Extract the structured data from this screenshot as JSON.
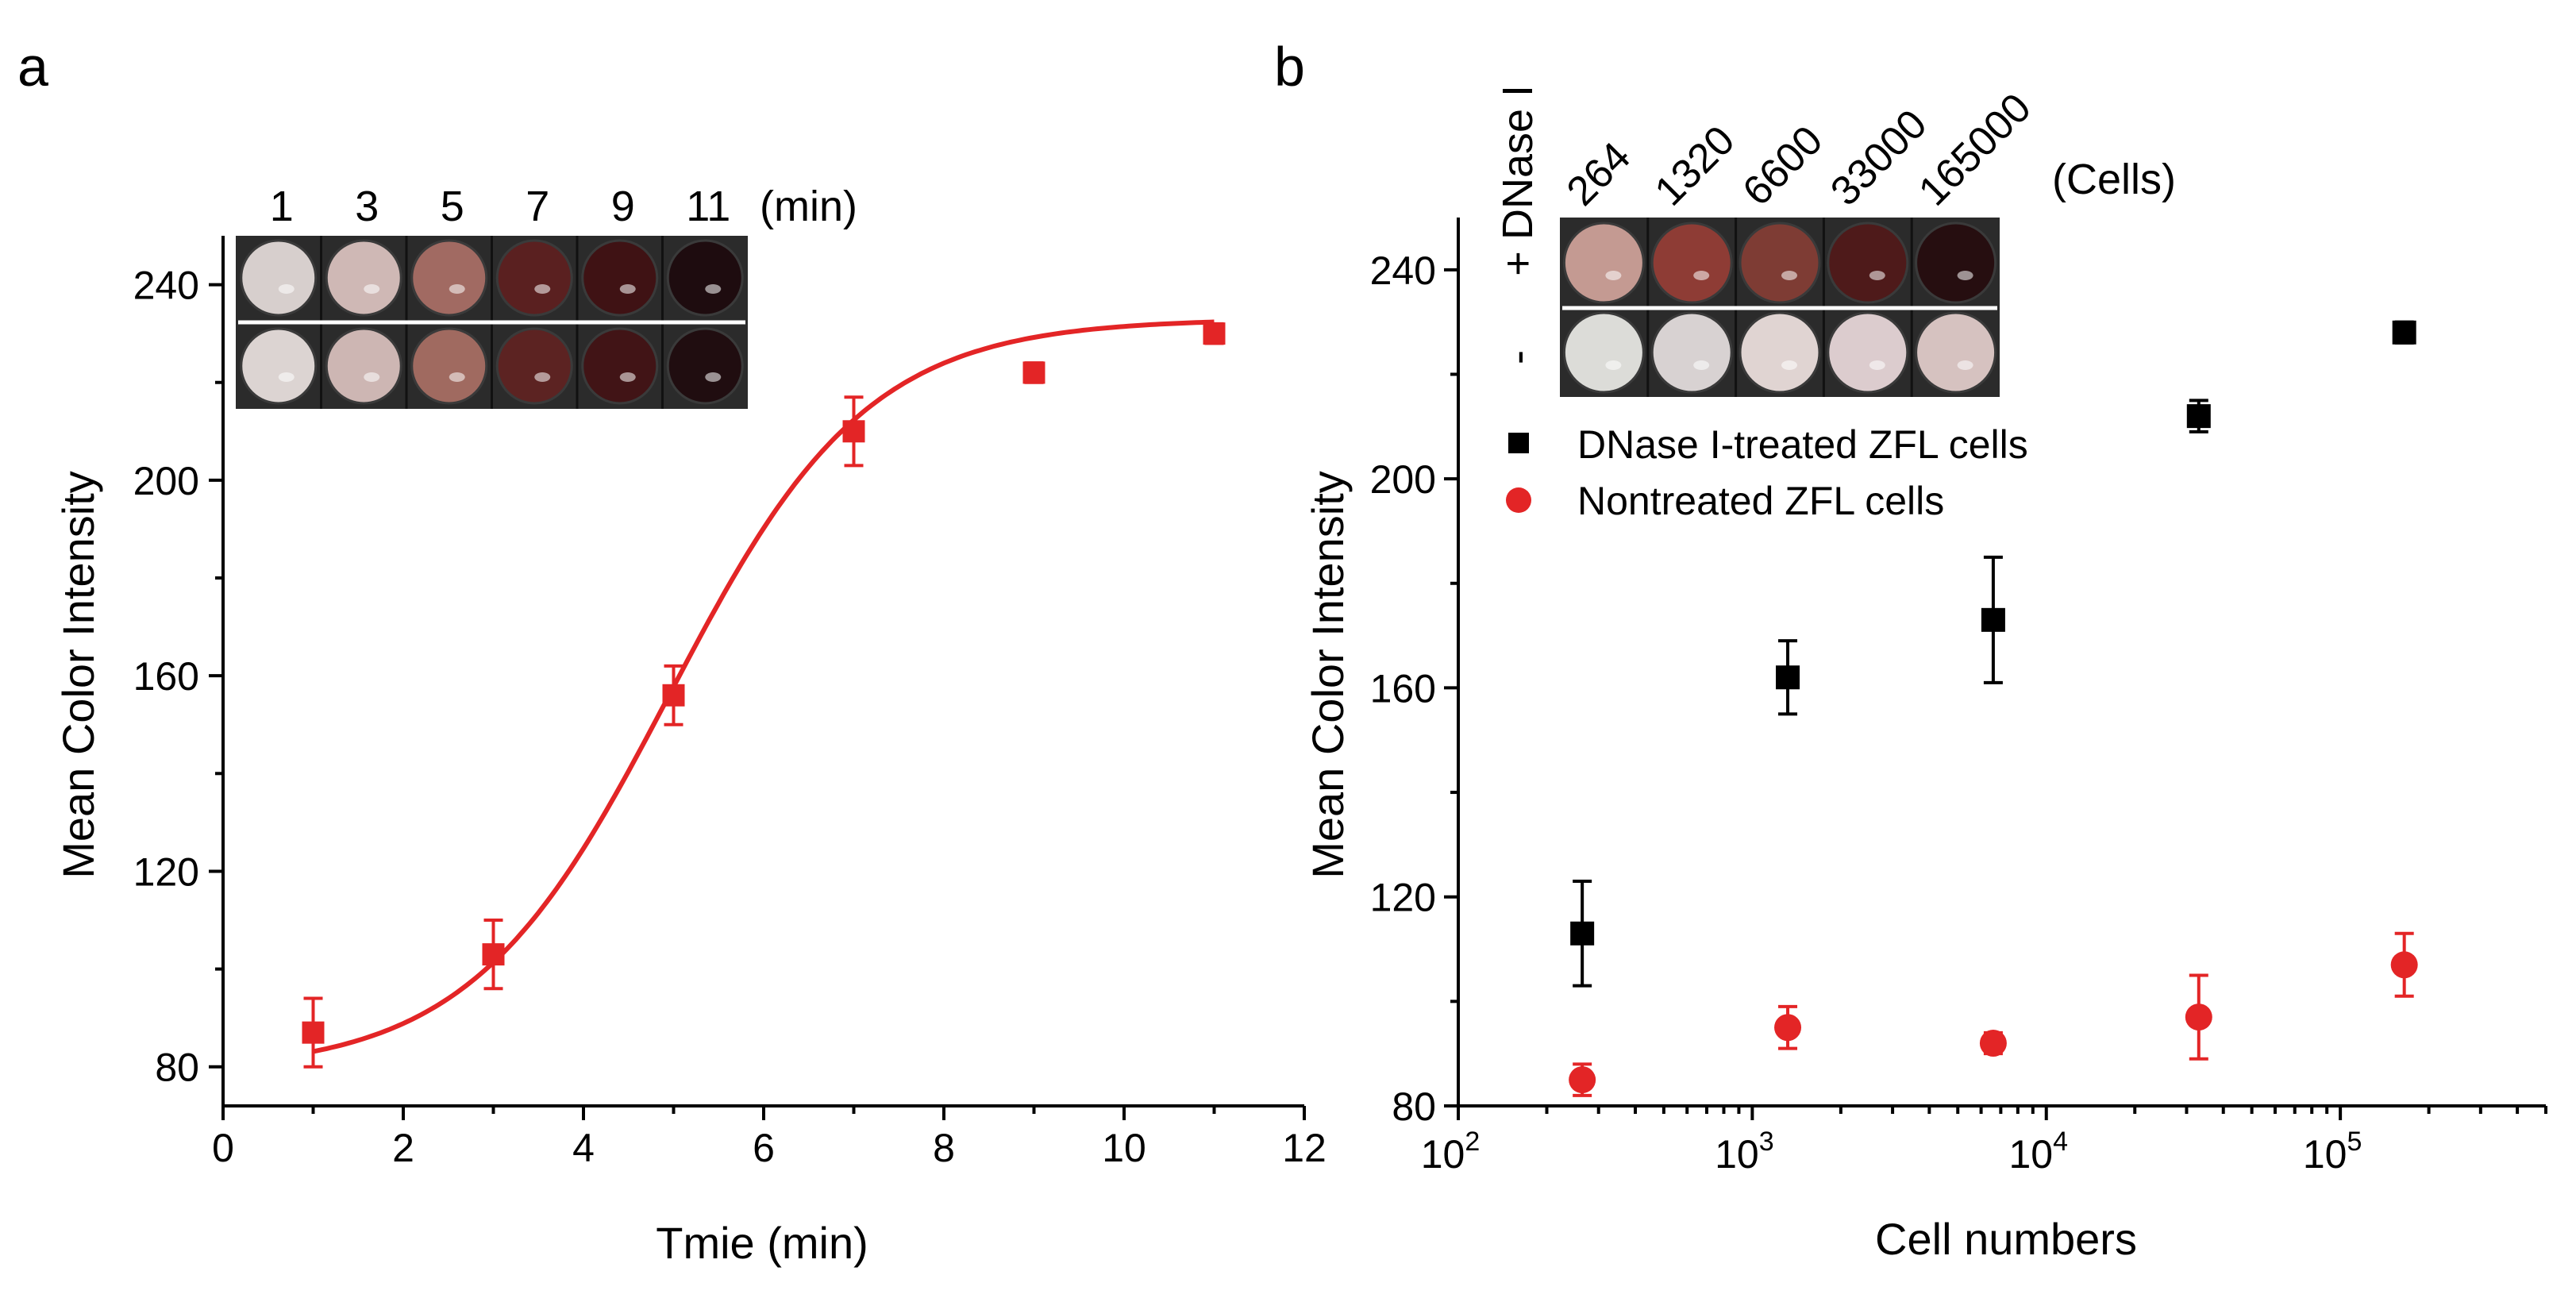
{
  "colors": {
    "red": "#e32526",
    "black": "#000000",
    "well_border": "#3a3a3a",
    "strip_background": "#2b2b2b"
  },
  "chart_data": [
    {
      "type": "scatter",
      "panel_label": "a",
      "xlabel": "Tmie (min)",
      "ylabel": "Mean Color Intensity",
      "xlim": [
        0,
        12
      ],
      "ylim": [
        72,
        250
      ],
      "xticks": [
        0,
        2,
        4,
        6,
        8,
        10,
        12
      ],
      "yticks": [
        80,
        120,
        160,
        200,
        240
      ],
      "fit": {
        "type": "sigmoid",
        "A1": 79,
        "A2": 233,
        "x0": 4.95,
        "dx": 1.1,
        "color": "#e32526"
      },
      "series": [
        {
          "name": "Mean Color Intensity",
          "color": "#e32526",
          "marker": "square",
          "x": [
            1,
            3,
            5,
            7,
            9,
            11
          ],
          "y": [
            87,
            103,
            156,
            210,
            222,
            230
          ],
          "err": [
            7,
            7,
            6,
            7,
            2,
            2
          ]
        }
      ],
      "inset": {
        "labels": [
          "1",
          "3",
          "5",
          "7",
          "9",
          "11"
        ],
        "unit": "(min)",
        "top_row_colors": [
          "#d7cfcd",
          "#cfb8b5",
          "#a16a62",
          "#5a2020",
          "#3f1214",
          "#1e0c0f"
        ],
        "bottom_row_colors": [
          "#dcd4d2",
          "#cdb6b3",
          "#a06a60",
          "#5c2322",
          "#411416",
          "#200d10"
        ]
      }
    },
    {
      "type": "scatter",
      "panel_label": "b",
      "xscale": "log",
      "xlabel": "Cell numbers",
      "ylabel": "Mean Color Intensity",
      "xlim": [
        100,
        500000
      ],
      "ylim": [
        80,
        250
      ],
      "xticks": [
        100,
        1000,
        10000,
        100000
      ],
      "xtick_bases": [
        "10",
        "10",
        "10",
        "10"
      ],
      "xtick_exponents": [
        "2",
        "3",
        "4",
        "5"
      ],
      "yticks": [
        80,
        120,
        160,
        200,
        240
      ],
      "legend_position": "upper-middle",
      "series": [
        {
          "name": "DNase I-treated ZFL cells",
          "color": "#000000",
          "marker": "square",
          "x": [
            264,
            1320,
            6600,
            33000,
            165000
          ],
          "y": [
            113,
            162,
            173,
            212,
            228
          ],
          "err": [
            10,
            7,
            12,
            3,
            2
          ]
        },
        {
          "name": "Nontreated ZFL cells",
          "color": "#e32526",
          "marker": "circle",
          "x": [
            264,
            1320,
            6600,
            33000,
            165000
          ],
          "y": [
            85,
            95,
            92,
            97,
            107
          ],
          "err": [
            3,
            4,
            2,
            8,
            6
          ]
        }
      ],
      "inset": {
        "labels": [
          "264",
          "1320",
          "6600",
          "33000",
          "165000"
        ],
        "unit": "(Cells)",
        "row_title": "DNase I",
        "plus_label": "+",
        "minus_label": "-",
        "top_row_colors": [
          "#c49a92",
          "#8e3c35",
          "#7e3c34",
          "#4e1a1a",
          "#260e10"
        ],
        "bottom_row_colors": [
          "#dcdcd8",
          "#d8d2d2",
          "#e0d4d2",
          "#dcccce",
          "#d6c2c0"
        ]
      }
    }
  ]
}
